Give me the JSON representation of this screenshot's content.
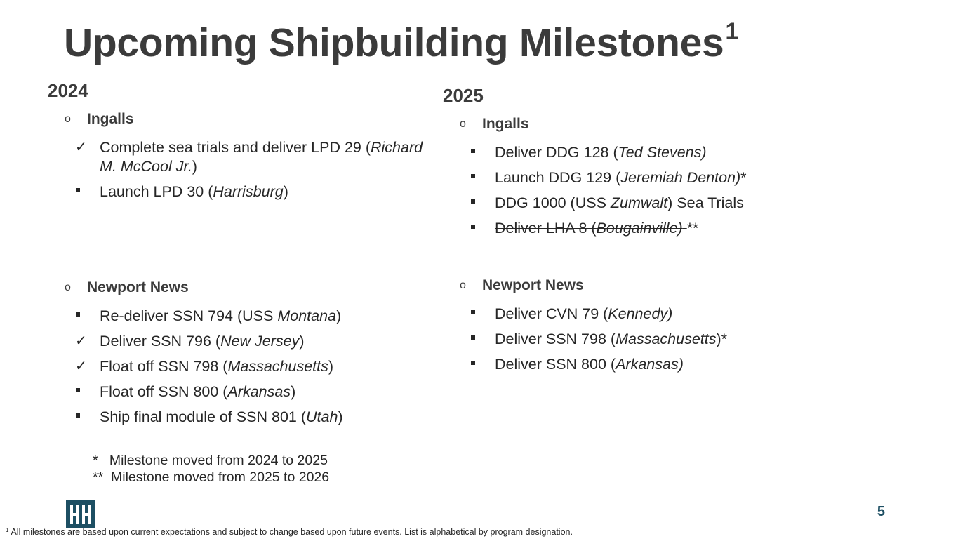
{
  "title": {
    "text": "Upcoming Shipbuilding Milestones",
    "footnote_mark": "1"
  },
  "columns": [
    {
      "year": "2024",
      "groups": [
        {
          "bullet": "o",
          "name": "Ingalls",
          "items": [
            {
              "marker": "check",
              "parts": [
                {
                  "t": "Complete sea trials and deliver LPD 29 ("
                },
                {
                  "t": "Richard M. McCool Jr.",
                  "i": true
                },
                {
                  "t": ")"
                }
              ]
            },
            {
              "marker": "square",
              "parts": [
                {
                  "t": "Launch LPD 30 ("
                },
                {
                  "t": "Harrisburg",
                  "i": true
                },
                {
                  "t": ")"
                }
              ]
            }
          ]
        },
        {
          "bullet": "o",
          "name": "Newport News",
          "items": [
            {
              "marker": "square",
              "parts": [
                {
                  "t": "Re-deliver SSN 794 (USS "
                },
                {
                  "t": "Montana",
                  "i": true
                },
                {
                  "t": ")"
                }
              ]
            },
            {
              "marker": "check",
              "parts": [
                {
                  "t": "Deliver SSN 796 ("
                },
                {
                  "t": "New Jersey",
                  "i": true
                },
                {
                  "t": ")"
                }
              ]
            },
            {
              "marker": "check",
              "parts": [
                {
                  "t": "Float off SSN 798 ("
                },
                {
                  "t": "Massachusetts",
                  "i": true
                },
                {
                  "t": ")"
                }
              ]
            },
            {
              "marker": "square",
              "parts": [
                {
                  "t": "Float off SSN 800 ("
                },
                {
                  "t": "Arkansas",
                  "i": true
                },
                {
                  "t": ")"
                }
              ]
            },
            {
              "marker": "square",
              "parts": [
                {
                  "t": "Ship final module of SSN 801 ("
                },
                {
                  "t": "Utah",
                  "i": true
                },
                {
                  "t": ")"
                }
              ]
            }
          ]
        }
      ]
    },
    {
      "year": "2025",
      "groups": [
        {
          "bullet": "o",
          "name": "Ingalls",
          "items": [
            {
              "marker": "square",
              "parts": [
                {
                  "t": "Deliver DDG 128 ("
                },
                {
                  "t": "Ted Stevens)",
                  "i": true
                }
              ]
            },
            {
              "marker": "square",
              "parts": [
                {
                  "t": "Launch DDG 129 ("
                },
                {
                  "t": "Jeremiah Denton)",
                  "i": true
                },
                {
                  "t": "*"
                }
              ]
            },
            {
              "marker": "square",
              "parts": [
                {
                  "t": "DDG 1000 (USS "
                },
                {
                  "t": "Zumwalt",
                  "i": true
                },
                {
                  "t": ") Sea Trials"
                }
              ]
            },
            {
              "marker": "square",
              "parts": [
                {
                  "t": " Deliver LHA 8 (",
                  "s": true
                },
                {
                  "t": "Bougainville)",
                  "i": true,
                  "s": true
                },
                {
                  "t": " ",
                  "s": true
                },
                {
                  "t": "**"
                }
              ]
            }
          ]
        },
        {
          "bullet": "o",
          "name": "Newport News",
          "items": [
            {
              "marker": "square",
              "parts": [
                {
                  "t": "Deliver CVN 79 ("
                },
                {
                  "t": "Kennedy)",
                  "i": true
                }
              ]
            },
            {
              "marker": "square",
              "parts": [
                {
                  "t": "Deliver SSN 798 ("
                },
                {
                  "t": "Massachusetts",
                  "i": true
                },
                {
                  "t": ")*"
                }
              ]
            },
            {
              "marker": "square",
              "parts": [
                {
                  "t": "Deliver SSN 800 ("
                },
                {
                  "t": "Arkansas)",
                  "i": true
                }
              ]
            }
          ]
        }
      ]
    }
  ],
  "notes": [
    "*   Milestone moved from 2024 to 2025",
    "**  Milestone moved from 2025 to 2026"
  ],
  "page_number": "5",
  "footnote": {
    "mark": "1",
    "text": "All milestones are based upon current expectations and subject to change based upon future events. List is alphabetical by program designation."
  },
  "colors": {
    "brand": "#1d4f63",
    "heading": "#3b3b3b",
    "body": "#262626"
  },
  "icons": {
    "check": "check-icon",
    "square": "square-bullet-icon",
    "circle": "circle-bullet-icon",
    "logo": "hii-logo-icon"
  }
}
